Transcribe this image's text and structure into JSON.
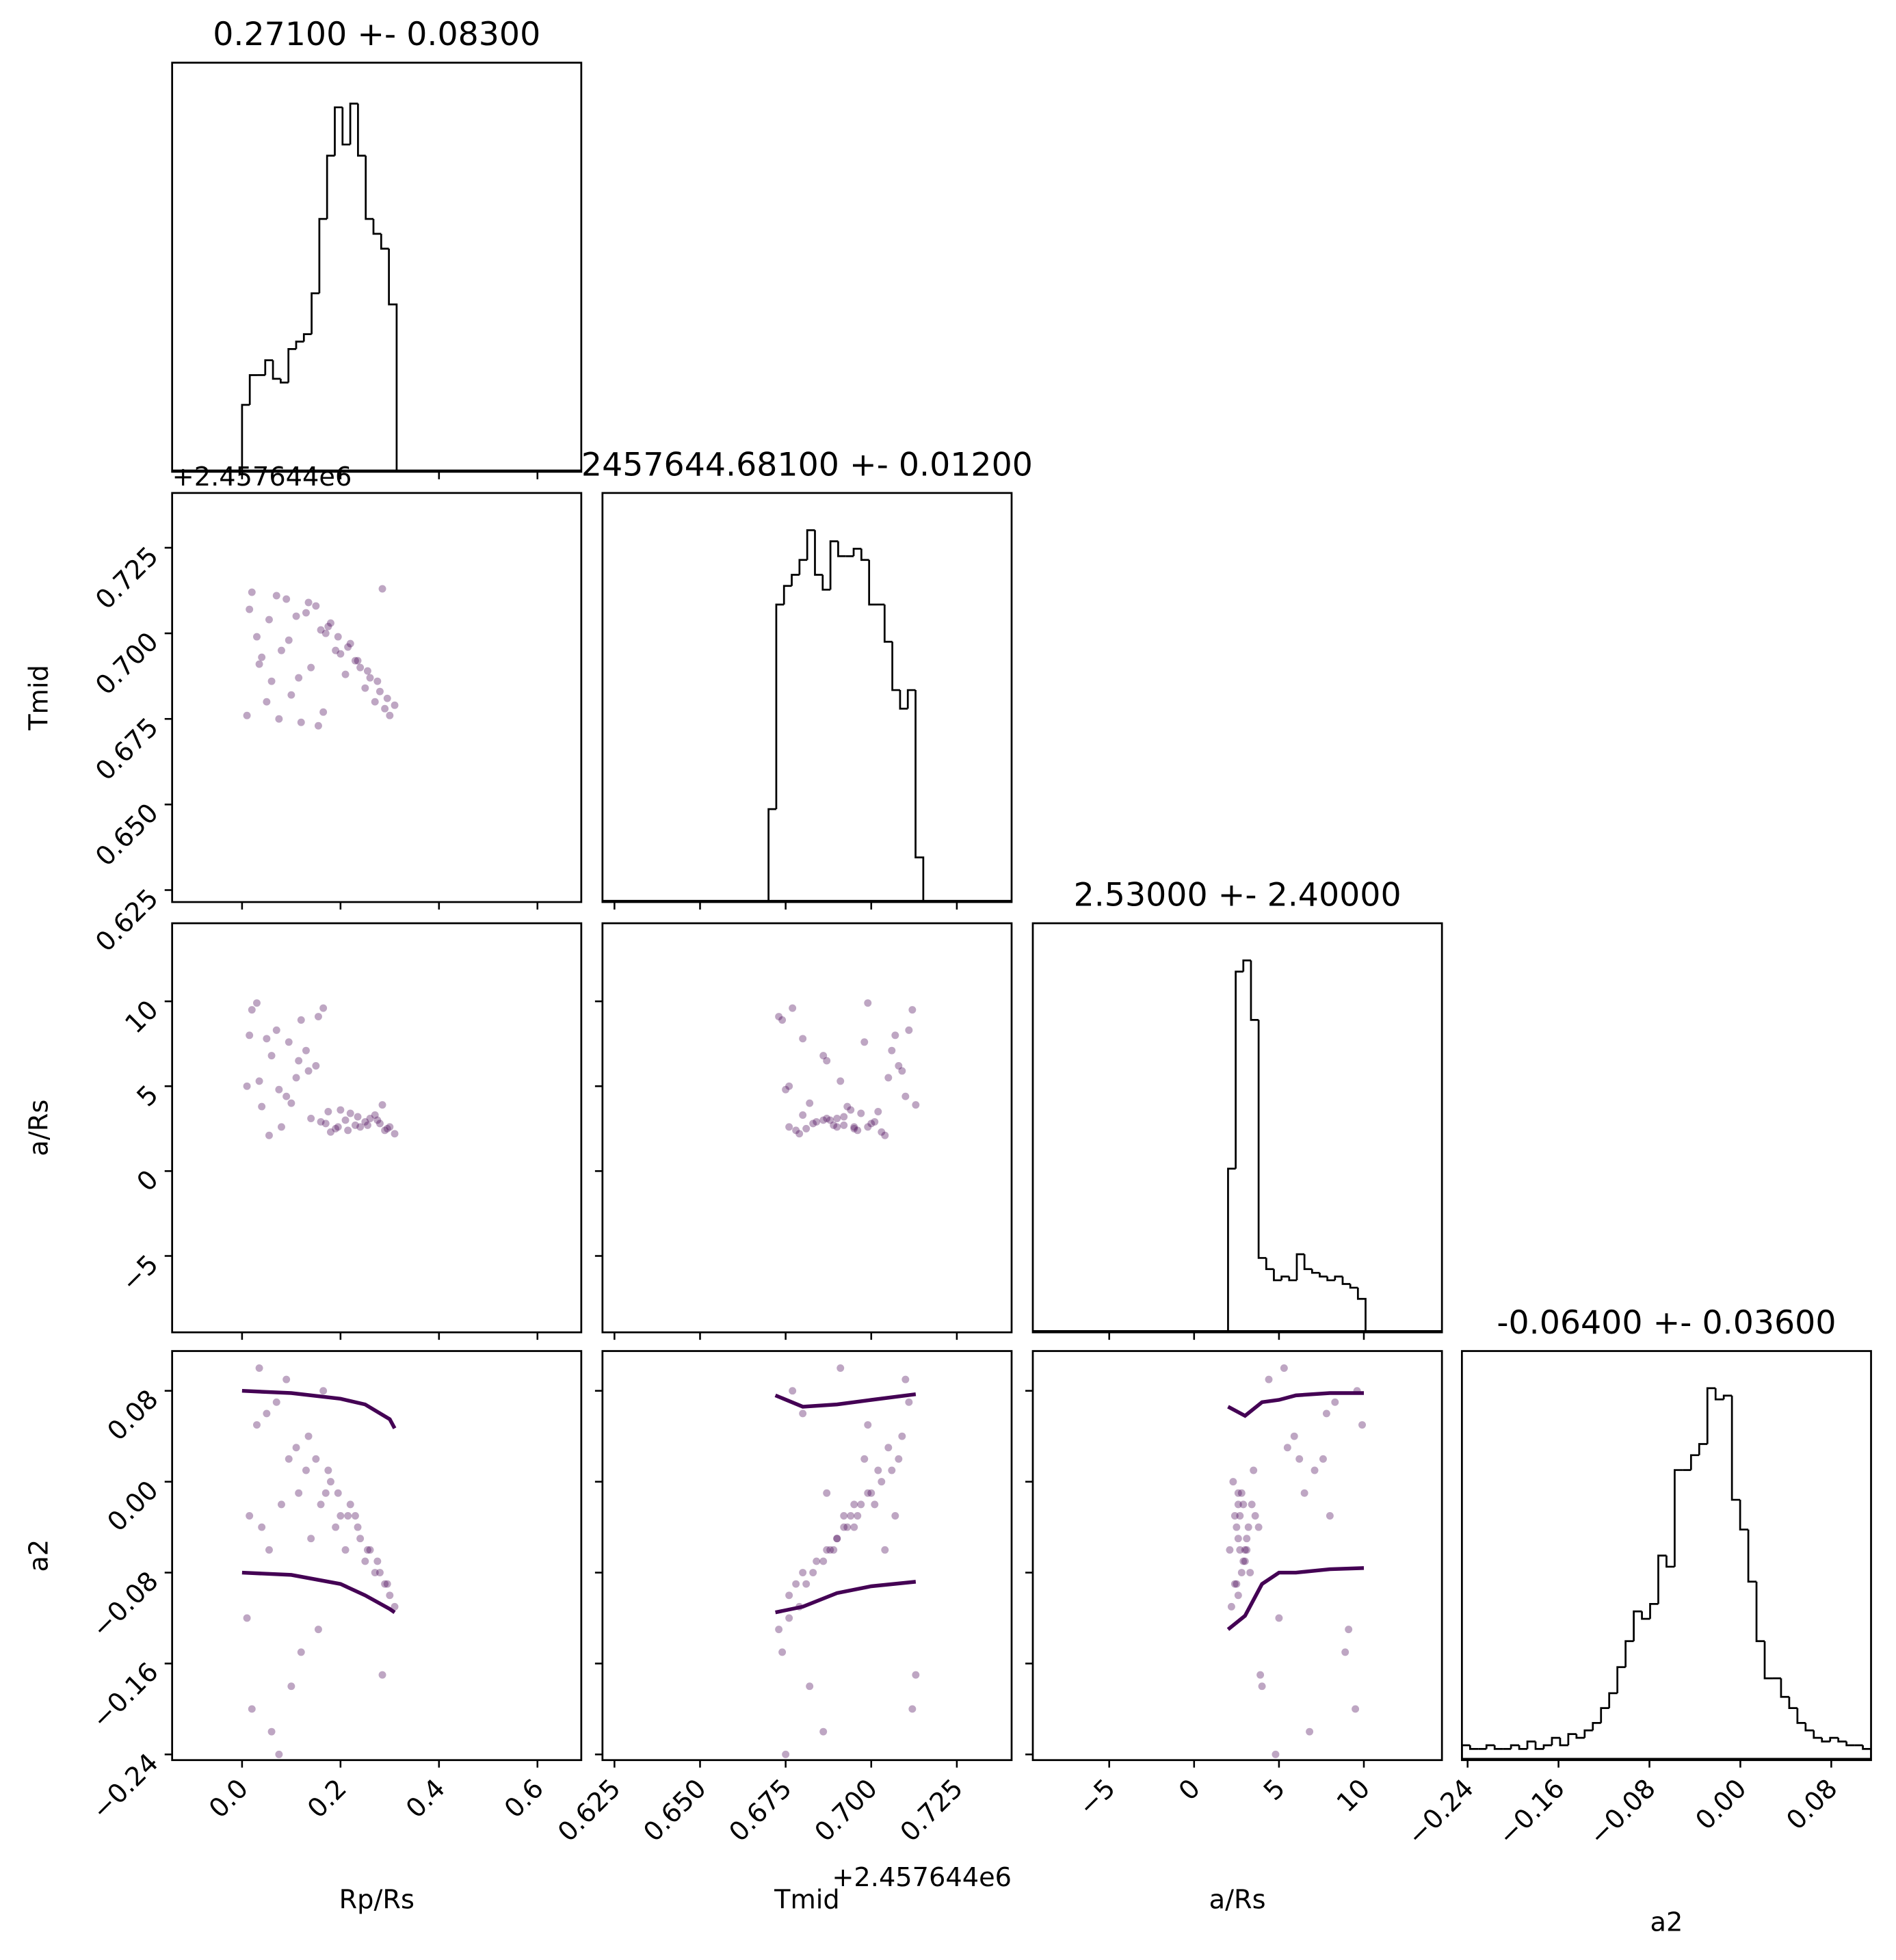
{
  "chart_data": {
    "type": "corner",
    "hist_ylim": [
      0,
      110
    ],
    "line_color": "#000000",
    "point_color": "#440154",
    "curve_color": "#440154",
    "params": [
      {
        "label": "Rp/Rs",
        "title": "0.27100 +- 0.08300",
        "lim": [
          -0.142,
          0.689
        ],
        "ticks": [
          {
            "value": 0,
            "label": "0.0"
          },
          0.2,
          0.4,
          0.6
        ],
        "bins": [
          0,
          0.0157,
          0.0314,
          0.0471,
          0.0628,
          0.0785,
          0.0942,
          0.1099,
          0.1256,
          0.1413,
          0.157,
          0.1727,
          0.1884,
          0.2041,
          0.2198,
          0.2355,
          0.2512,
          0.2669,
          0.2826,
          0.2983,
          0.314
        ],
        "counts": [
          18,
          26,
          26,
          30,
          25,
          24,
          33,
          35,
          37,
          48,
          68,
          85,
          98,
          88,
          99,
          85,
          68,
          64,
          60,
          45
        ],
        "samples": [
          0.02,
          0.05,
          0.08,
          0.11,
          0.14,
          0.17,
          0.19,
          0.21,
          0.23,
          0.25,
          0.27,
          0.29,
          0.3,
          0.22,
          0.18,
          0.15,
          0.12,
          0.09,
          0.06,
          0.03,
          0.01,
          0.24,
          0.26,
          0.28,
          0.2,
          0.16,
          0.13,
          0.1,
          0.07,
          0.04,
          0.31,
          0.295,
          0.275,
          0.255,
          0.235,
          0.215,
          0.195,
          0.175,
          0.155,
          0.135,
          0.115,
          0.095,
          0.075,
          0.055,
          0.035,
          0.015,
          0.285,
          0.165
        ]
      },
      {
        "label": "Tmid",
        "title": "2457644.68100 +- 0.01200",
        "offset": "+2.457644e6",
        "lim": [
          0.6215,
          0.741
        ],
        "ticks": [
          0.625,
          {
            "value": 0.65,
            "label": "0.650"
          },
          0.675,
          {
            "value": 0.7,
            "label": "0.700"
          },
          0.725
        ],
        "bins": [
          0.67,
          0.67226,
          0.67452,
          0.67678,
          0.67904,
          0.6813,
          0.68356,
          0.68582,
          0.68808,
          0.69034,
          0.6926,
          0.69486,
          0.69712,
          0.69938,
          0.70164,
          0.7039,
          0.70616,
          0.70842,
          0.71068,
          0.71294,
          0.7152
        ],
        "counts": [
          25,
          80,
          85,
          88,
          92,
          100,
          88,
          84,
          97,
          93,
          93,
          95,
          92,
          80,
          80,
          70,
          57,
          52,
          57,
          12
        ],
        "samples": [
          0.712,
          0.68,
          0.695,
          0.705,
          0.69,
          0.7,
          0.695,
          0.688,
          0.692,
          0.684,
          0.68,
          0.678,
          0.676,
          0.697,
          0.703,
          0.708,
          0.674,
          0.71,
          0.686,
          0.699,
          0.676,
          0.69,
          0.687,
          0.683,
          0.694,
          0.701,
          0.706,
          0.682,
          0.711,
          0.693,
          0.679,
          0.681,
          0.686,
          0.689,
          0.692,
          0.696,
          0.699,
          0.702,
          0.673,
          0.709,
          0.687,
          0.698,
          0.675,
          0.704,
          0.691,
          0.707,
          0.713,
          0.677
        ]
      },
      {
        "label": "a/Rs",
        "title": "2.53000 +- 2.40000",
        "lim": [
          -9.5,
          14.6
        ],
        "ticks": [
          {
            "value": -5,
            "label": "−5"
          },
          0,
          5,
          10
        ],
        "bins": [
          2,
          2.45,
          2.9,
          3.35,
          3.8,
          4.25,
          4.7,
          5.15,
          5.6,
          6.05,
          6.5,
          6.95,
          7.4,
          7.85,
          8.3,
          8.75,
          9.2,
          9.65,
          10.1
        ],
        "counts": [
          44,
          97,
          100,
          84,
          20,
          17,
          14,
          15,
          14,
          21,
          17,
          16,
          15,
          14,
          15,
          13,
          12,
          9
        ],
        "samples": [
          9.5,
          7.8,
          2.6,
          5.5,
          3.1,
          2.8,
          2.5,
          3.0,
          2.7,
          2.9,
          3.3,
          2.4,
          2.6,
          3.4,
          2.3,
          6.2,
          8.9,
          4.4,
          6.8,
          9.9,
          5.0,
          2.6,
          3.1,
          2.8,
          3.6,
          2.9,
          7.1,
          4.0,
          8.3,
          3.8,
          2.2,
          2.5,
          3.0,
          2.7,
          3.2,
          2.4,
          2.6,
          3.5,
          9.1,
          5.9,
          6.5,
          7.6,
          4.8,
          2.1,
          5.3,
          8.0,
          3.9,
          9.6
        ]
      },
      {
        "label": "a2",
        "title": "-0.06400 +- 0.03600",
        "lim": [
          -0.245,
          0.115
        ],
        "ticks": [
          {
            "value": -0.24,
            "label": "−0.24"
          },
          {
            "value": -0.16,
            "label": "−0.16"
          },
          {
            "value": -0.08,
            "label": "−0.08"
          },
          {
            "value": 0,
            "label": "0.00"
          },
          0.08
        ],
        "bins": [
          -0.245,
          -0.2378,
          -0.2306,
          -0.2234,
          -0.2162,
          -0.209,
          -0.2018,
          -0.1946,
          -0.1874,
          -0.1802,
          -0.173,
          -0.1658,
          -0.1586,
          -0.1514,
          -0.1442,
          -0.137,
          -0.1298,
          -0.1226,
          -0.1154,
          -0.1082,
          -0.101,
          -0.0938,
          -0.0866,
          -0.0794,
          -0.0722,
          -0.065,
          -0.0578,
          -0.0506,
          -0.0434,
          -0.0362,
          -0.029,
          -0.0218,
          -0.0146,
          -0.0074,
          -0.0002,
          0.007,
          0.0142,
          0.0214,
          0.0286,
          0.0358,
          0.043,
          0.0502,
          0.0574,
          0.0646,
          0.0718,
          0.079,
          0.0862,
          0.0934,
          0.1006,
          0.1078,
          0.115
        ],
        "counts": [
          4,
          3,
          3,
          4,
          3,
          3,
          4,
          3,
          5,
          3,
          4,
          6,
          4,
          7,
          6,
          8,
          10,
          14,
          18,
          25,
          32,
          40,
          38,
          42,
          55,
          52,
          78,
          78,
          82,
          85,
          100,
          97,
          98,
          70,
          62,
          48,
          32,
          22,
          22,
          17,
          14,
          10,
          8,
          6,
          5,
          6,
          5,
          4,
          4,
          3
        ],
        "samples": [
          -0.2,
          0.06,
          -0.02,
          0.03,
          -0.05,
          -0.01,
          -0.04,
          -0.06,
          -0.03,
          -0.07,
          -0.08,
          -0.09,
          -0.1,
          -0.02,
          0,
          0.02,
          -0.15,
          0.09,
          -0.22,
          0.05,
          -0.12,
          -0.05,
          -0.06,
          -0.08,
          -0.03,
          -0.02,
          0.01,
          -0.18,
          0.07,
          -0.04,
          -0.11,
          -0.09,
          -0.07,
          -0.06,
          -0.04,
          -0.03,
          -0.01,
          0.01,
          -0.13,
          0.04,
          -0.01,
          0.02,
          -0.24,
          -0.06,
          0.1,
          -0.03,
          -0.17,
          0.08
        ]
      }
    ],
    "quantile_curves": [
      {
        "x": [
          0,
          0.1,
          0.2,
          0.25,
          0.3,
          0.31
        ],
        "upper": [
          0.08,
          0.078,
          0.073,
          0.068,
          0.055,
          0.047
        ],
        "lower": [
          -0.08,
          -0.082,
          -0.09,
          -0.1,
          -0.112,
          -0.115
        ]
      },
      {
        "x": [
          0.672,
          0.68,
          0.69,
          0.7,
          0.713
        ],
        "upper": [
          0.076,
          0.066,
          0.068,
          0.072,
          0.077
        ],
        "lower": [
          -0.115,
          -0.11,
          -0.098,
          -0.092,
          -0.088
        ]
      },
      {
        "x": [
          2,
          3,
          4,
          5,
          6,
          8,
          10
        ],
        "upper": [
          0.066,
          0.058,
          0.07,
          0.072,
          0.076,
          0.078,
          0.078
        ],
        "lower": [
          -0.13,
          -0.118,
          -0.09,
          -0.08,
          -0.08,
          -0.077,
          -0.076
        ]
      }
    ]
  }
}
